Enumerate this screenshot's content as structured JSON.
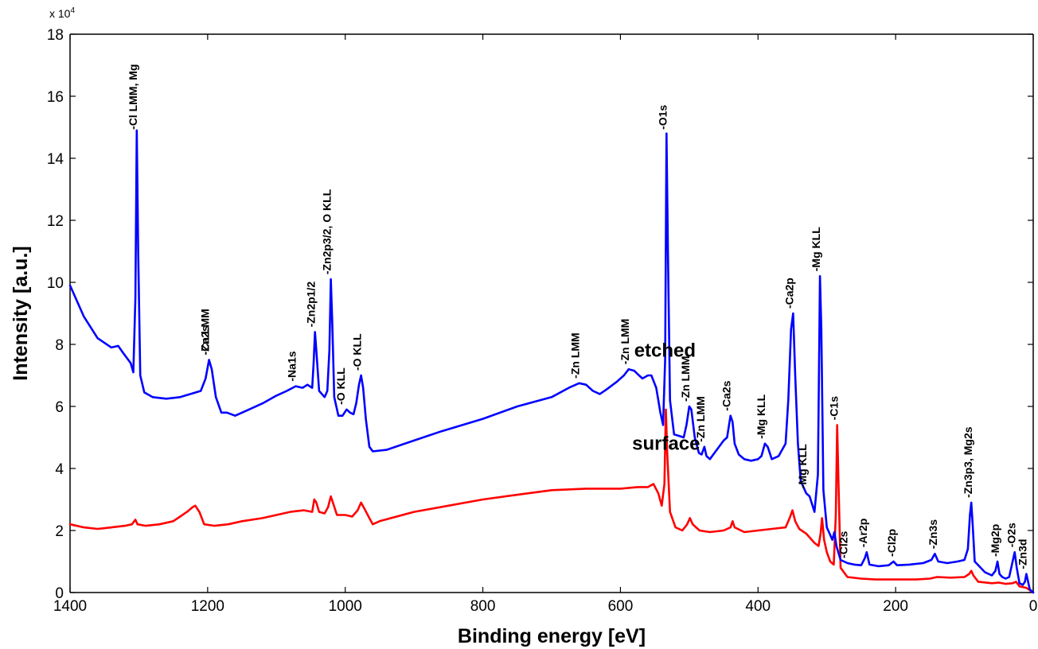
{
  "chart_data": {
    "type": "line",
    "xlabel": "Binding energy [eV]",
    "ylabel": "Intensity [a.u.]",
    "x_axis_reversed": true,
    "xlim": [
      0,
      1400
    ],
    "ylim": [
      0,
      18
    ],
    "y_multiplier_label": "x 10",
    "y_multiplier_exponent": "4",
    "x_ticks": [
      1400,
      1200,
      1000,
      800,
      600,
      400,
      200,
      0
    ],
    "y_ticks": [
      0,
      2,
      4,
      6,
      8,
      10,
      12,
      14,
      16,
      18
    ],
    "grid": false,
    "series": [
      {
        "name": "etched",
        "color": "#0000ff",
        "points": [
          [
            1400,
            9.9
          ],
          [
            1380,
            8.9
          ],
          [
            1360,
            8.2
          ],
          [
            1340,
            7.9
          ],
          [
            1330,
            7.95
          ],
          [
            1322,
            7.7
          ],
          [
            1312,
            7.4
          ],
          [
            1308,
            7.1
          ],
          [
            1305,
            9.5
          ],
          [
            1303,
            14.9
          ],
          [
            1301,
            11.0
          ],
          [
            1298,
            7.0
          ],
          [
            1292,
            6.45
          ],
          [
            1280,
            6.3
          ],
          [
            1260,
            6.25
          ],
          [
            1240,
            6.3
          ],
          [
            1225,
            6.4
          ],
          [
            1210,
            6.5
          ],
          [
            1203,
            6.9
          ],
          [
            1198,
            7.5
          ],
          [
            1194,
            7.2
          ],
          [
            1188,
            6.3
          ],
          [
            1180,
            5.8
          ],
          [
            1172,
            5.8
          ],
          [
            1160,
            5.7
          ],
          [
            1140,
            5.9
          ],
          [
            1120,
            6.1
          ],
          [
            1100,
            6.35
          ],
          [
            1085,
            6.5
          ],
          [
            1072,
            6.65
          ],
          [
            1062,
            6.6
          ],
          [
            1055,
            6.7
          ],
          [
            1048,
            6.6
          ],
          [
            1046,
            7.4
          ],
          [
            1044,
            8.4
          ],
          [
            1042,
            7.8
          ],
          [
            1038,
            6.5
          ],
          [
            1030,
            6.3
          ],
          [
            1026,
            6.5
          ],
          [
            1023,
            7.8
          ],
          [
            1021,
            10.1
          ],
          [
            1019,
            8.8
          ],
          [
            1016,
            6.3
          ],
          [
            1010,
            5.7
          ],
          [
            1004,
            5.7
          ],
          [
            998,
            5.9
          ],
          [
            993,
            5.8
          ],
          [
            988,
            5.75
          ],
          [
            984,
            6.1
          ],
          [
            980,
            6.7
          ],
          [
            977,
            7.0
          ],
          [
            974,
            6.6
          ],
          [
            970,
            5.6
          ],
          [
            965,
            4.7
          ],
          [
            960,
            4.55
          ],
          [
            940,
            4.6
          ],
          [
            900,
            4.9
          ],
          [
            860,
            5.2
          ],
          [
            800,
            5.6
          ],
          [
            750,
            6.0
          ],
          [
            700,
            6.3
          ],
          [
            675,
            6.6
          ],
          [
            660,
            6.75
          ],
          [
            650,
            6.7
          ],
          [
            640,
            6.5
          ],
          [
            630,
            6.4
          ],
          [
            620,
            6.55
          ],
          [
            605,
            6.8
          ],
          [
            595,
            7.0
          ],
          [
            588,
            7.2
          ],
          [
            580,
            7.15
          ],
          [
            573,
            7.0
          ],
          [
            568,
            6.9
          ],
          [
            560,
            7.0
          ],
          [
            555,
            7.0
          ],
          [
            548,
            6.6
          ],
          [
            542,
            5.8
          ],
          [
            538,
            5.4
          ],
          [
            535,
            7.5
          ],
          [
            533,
            14.8
          ],
          [
            531,
            11.0
          ],
          [
            528,
            6.2
          ],
          [
            522,
            5.1
          ],
          [
            515,
            5.05
          ],
          [
            508,
            5.0
          ],
          [
            504,
            5.4
          ],
          [
            500,
            6.0
          ],
          [
            497,
            5.9
          ],
          [
            492,
            5.0
          ],
          [
            486,
            4.5
          ],
          [
            482,
            4.45
          ],
          [
            478,
            4.7
          ],
          [
            475,
            4.4
          ],
          [
            470,
            4.3
          ],
          [
            460,
            4.6
          ],
          [
            450,
            4.9
          ],
          [
            445,
            5.0
          ],
          [
            440,
            5.7
          ],
          [
            437,
            5.5
          ],
          [
            434,
            4.8
          ],
          [
            428,
            4.45
          ],
          [
            420,
            4.3
          ],
          [
            410,
            4.25
          ],
          [
            400,
            4.3
          ],
          [
            395,
            4.4
          ],
          [
            390,
            4.8
          ],
          [
            386,
            4.7
          ],
          [
            380,
            4.3
          ],
          [
            370,
            4.4
          ],
          [
            360,
            4.8
          ],
          [
            356,
            6.2
          ],
          [
            352,
            8.5
          ],
          [
            349,
            9.0
          ],
          [
            346,
            7.0
          ],
          [
            342,
            4.8
          ],
          [
            338,
            3.6
          ],
          [
            334,
            3.4
          ],
          [
            330,
            3.2
          ],
          [
            325,
            3.1
          ],
          [
            318,
            2.6
          ],
          [
            313,
            3.8
          ],
          [
            310,
            10.2
          ],
          [
            308,
            8.5
          ],
          [
            305,
            3.3
          ],
          [
            300,
            2.1
          ],
          [
            296,
            1.9
          ],
          [
            292,
            1.7
          ],
          [
            289,
            1.95
          ],
          [
            286,
            1.5
          ],
          [
            280,
            1.05
          ],
          [
            270,
            0.95
          ],
          [
            260,
            0.9
          ],
          [
            250,
            0.88
          ],
          [
            245,
            1.1
          ],
          [
            242,
            1.3
          ],
          [
            238,
            0.9
          ],
          [
            225,
            0.85
          ],
          [
            210,
            0.88
          ],
          [
            203,
            1.0
          ],
          [
            198,
            0.88
          ],
          [
            180,
            0.9
          ],
          [
            160,
            0.95
          ],
          [
            148,
            1.05
          ],
          [
            143,
            1.25
          ],
          [
            138,
            1.0
          ],
          [
            125,
            0.95
          ],
          [
            110,
            1.0
          ],
          [
            100,
            1.05
          ],
          [
            95,
            1.4
          ],
          [
            92,
            2.5
          ],
          [
            90,
            2.9
          ],
          [
            88,
            2.2
          ],
          [
            85,
            1.0
          ],
          [
            70,
            0.65
          ],
          [
            60,
            0.55
          ],
          [
            55,
            0.7
          ],
          [
            52,
            1.0
          ],
          [
            49,
            0.6
          ],
          [
            45,
            0.5
          ],
          [
            40,
            0.45
          ],
          [
            35,
            0.5
          ],
          [
            30,
            1.0
          ],
          [
            27,
            1.3
          ],
          [
            24,
            0.8
          ],
          [
            20,
            0.3
          ],
          [
            15,
            0.25
          ],
          [
            12,
            0.35
          ],
          [
            10,
            0.6
          ],
          [
            8,
            0.4
          ],
          [
            5,
            0.1
          ],
          [
            0,
            0.0
          ]
        ]
      },
      {
        "name": "surface",
        "color": "#ff0000",
        "points": [
          [
            1400,
            2.2
          ],
          [
            1380,
            2.1
          ],
          [
            1360,
            2.05
          ],
          [
            1340,
            2.1
          ],
          [
            1320,
            2.15
          ],
          [
            1310,
            2.2
          ],
          [
            1305,
            2.35
          ],
          [
            1302,
            2.2
          ],
          [
            1290,
            2.15
          ],
          [
            1270,
            2.2
          ],
          [
            1250,
            2.3
          ],
          [
            1240,
            2.45
          ],
          [
            1230,
            2.6
          ],
          [
            1222,
            2.75
          ],
          [
            1218,
            2.8
          ],
          [
            1212,
            2.6
          ],
          [
            1205,
            2.2
          ],
          [
            1190,
            2.15
          ],
          [
            1170,
            2.2
          ],
          [
            1150,
            2.3
          ],
          [
            1120,
            2.4
          ],
          [
            1100,
            2.5
          ],
          [
            1080,
            2.6
          ],
          [
            1060,
            2.65
          ],
          [
            1048,
            2.6
          ],
          [
            1045,
            3.0
          ],
          [
            1042,
            2.9
          ],
          [
            1038,
            2.6
          ],
          [
            1030,
            2.55
          ],
          [
            1025,
            2.75
          ],
          [
            1021,
            3.1
          ],
          [
            1018,
            2.9
          ],
          [
            1012,
            2.5
          ],
          [
            1000,
            2.5
          ],
          [
            990,
            2.45
          ],
          [
            982,
            2.65
          ],
          [
            977,
            2.9
          ],
          [
            972,
            2.7
          ],
          [
            965,
            2.4
          ],
          [
            960,
            2.2
          ],
          [
            950,
            2.3
          ],
          [
            900,
            2.6
          ],
          [
            850,
            2.8
          ],
          [
            800,
            3.0
          ],
          [
            750,
            3.15
          ],
          [
            700,
            3.3
          ],
          [
            650,
            3.35
          ],
          [
            600,
            3.35
          ],
          [
            575,
            3.4
          ],
          [
            560,
            3.4
          ],
          [
            552,
            3.5
          ],
          [
            545,
            3.2
          ],
          [
            540,
            2.8
          ],
          [
            536,
            3.5
          ],
          [
            534,
            5.9
          ],
          [
            532,
            4.5
          ],
          [
            528,
            2.6
          ],
          [
            520,
            2.1
          ],
          [
            510,
            2.0
          ],
          [
            503,
            2.2
          ],
          [
            499,
            2.4
          ],
          [
            495,
            2.2
          ],
          [
            485,
            2.0
          ],
          [
            470,
            1.95
          ],
          [
            450,
            2.0
          ],
          [
            440,
            2.1
          ],
          [
            437,
            2.3
          ],
          [
            434,
            2.1
          ],
          [
            420,
            1.95
          ],
          [
            400,
            2.0
          ],
          [
            380,
            2.05
          ],
          [
            360,
            2.1
          ],
          [
            354,
            2.4
          ],
          [
            350,
            2.65
          ],
          [
            346,
            2.3
          ],
          [
            340,
            2.05
          ],
          [
            330,
            1.9
          ],
          [
            318,
            1.6
          ],
          [
            312,
            1.5
          ],
          [
            309,
            1.9
          ],
          [
            307,
            2.4
          ],
          [
            304,
            1.7
          ],
          [
            300,
            1.3
          ],
          [
            295,
            1.0
          ],
          [
            290,
            0.9
          ],
          [
            287,
            2.5
          ],
          [
            285,
            5.4
          ],
          [
            283,
            3.5
          ],
          [
            280,
            0.8
          ],
          [
            270,
            0.5
          ],
          [
            250,
            0.45
          ],
          [
            230,
            0.42
          ],
          [
            210,
            0.42
          ],
          [
            190,
            0.42
          ],
          [
            170,
            0.42
          ],
          [
            150,
            0.45
          ],
          [
            140,
            0.5
          ],
          [
            120,
            0.48
          ],
          [
            100,
            0.5
          ],
          [
            93,
            0.6
          ],
          [
            90,
            0.7
          ],
          [
            87,
            0.55
          ],
          [
            80,
            0.35
          ],
          [
            60,
            0.3
          ],
          [
            50,
            0.32
          ],
          [
            40,
            0.28
          ],
          [
            30,
            0.3
          ],
          [
            25,
            0.35
          ],
          [
            20,
            0.2
          ],
          [
            10,
            0.15
          ],
          [
            0,
            0.0
          ]
        ]
      }
    ],
    "series_labels": [
      {
        "text": "etched",
        "x": 580,
        "y": 7.6
      },
      {
        "text": "surface",
        "x": 583,
        "y": 4.6
      }
    ],
    "annotations": [
      {
        "text": "-Cl LMM, Mg",
        "x": 1303
      },
      {
        "text": "-Zn2s",
        "x": 1198
      },
      {
        "text": "-Ca LMM",
        "x": 1198
      },
      {
        "text": "-Na1s",
        "x": 1072
      },
      {
        "text": "-Zn2p1/2",
        "x": 1044
      },
      {
        "text": "-Zn2p3/2, O KLL",
        "x": 1021
      },
      {
        "text": "-O KLL",
        "x": 1001
      },
      {
        "text": "-O KLL",
        "x": 977
      },
      {
        "text": "-Zn LMM",
        "x": 660
      },
      {
        "text": "-Zn LMM",
        "x": 588
      },
      {
        "text": "-O1s",
        "x": 533
      },
      {
        "text": "-Zn LMM",
        "x": 500
      },
      {
        "text": "-Zn LMM",
        "x": 478
      },
      {
        "text": "-Ca2s",
        "x": 440
      },
      {
        "text": "-Mg KLL",
        "x": 390
      },
      {
        "text": "-Ca2p",
        "x": 349
      },
      {
        "text": "-Mg KLL",
        "x": 330
      },
      {
        "text": "-Mg KLL",
        "x": 310
      },
      {
        "text": "-C1s",
        "x": 284
      },
      {
        "text": "-Cl2s",
        "x": 270
      },
      {
        "text": "-Ar2p",
        "x": 242
      },
      {
        "text": "-Cl2p",
        "x": 200
      },
      {
        "text": "-Zn3s",
        "x": 140
      },
      {
        "text": "-Zn3p3, Mg2s",
        "x": 89
      },
      {
        "text": "-Mg2p",
        "x": 50
      },
      {
        "text": "-O2s",
        "x": 26
      },
      {
        "text": "-Zn3d",
        "x": 10
      }
    ]
  }
}
